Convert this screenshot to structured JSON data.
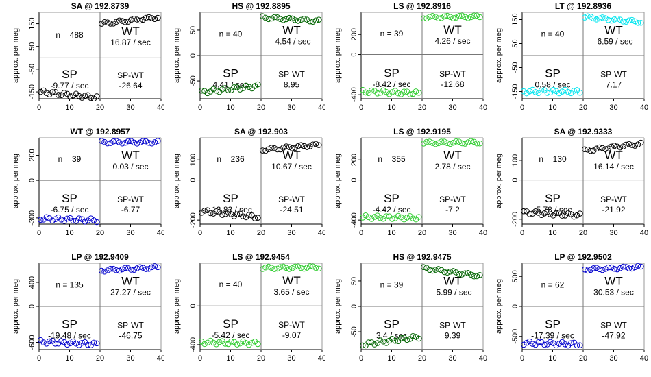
{
  "chart_data": [
    {
      "type": "scatter",
      "title": "SA @ 192.8739",
      "ylabel": "approx. per meg",
      "xlim": [
        0,
        40
      ],
      "ylim": [
        -180,
        200
      ],
      "yticks": [
        150,
        50,
        -50,
        -150
      ],
      "xticks": [
        0,
        10,
        20,
        30,
        40
      ],
      "color": "#000000",
      "n": "n = 488",
      "wt_label": "WT",
      "wt_rate": "16.87 / sec",
      "sp_label": "SP",
      "sp_rate": "-9.77 / sec",
      "diff_label": "SP-WT",
      "diff_value": "-26.64",
      "sp_start": -150,
      "sp_end": -175,
      "wt_start": 150,
      "wt_end": 178
    },
    {
      "type": "scatter",
      "title": "HS @ 192.8895",
      "ylabel": "approx. per meg",
      "xlim": [
        0,
        40
      ],
      "ylim": [
        -85,
        85
      ],
      "yticks": [
        50,
        0,
        -50
      ],
      "xticks": [
        0,
        10,
        20,
        30,
        40
      ],
      "color": "#006400",
      "n": "n = 40",
      "wt_label": "WT",
      "wt_rate": "-4.54 / sec",
      "sp_label": "SP",
      "sp_rate": "4.41 / sec",
      "diff_label": "SP-WT",
      "diff_value": "8.95",
      "sp_start": -72,
      "sp_end": -60,
      "wt_start": 75,
      "wt_end": 68
    },
    {
      "type": "scatter",
      "title": "LS @ 192.8916",
      "ylabel": "approx. per meg",
      "xlim": [
        0,
        40
      ],
      "ylim": [
        -440,
        420
      ],
      "yticks": [
        200,
        0,
        -400
      ],
      "xticks": [
        0,
        10,
        20,
        30,
        40
      ],
      "color": "#32cd32",
      "n": "n = 39",
      "wt_label": "WT",
      "wt_rate": "4.26 / sec",
      "sp_label": "SP",
      "sp_rate": "-8.42 / sec",
      "diff_label": "SP-WT",
      "diff_value": "-12.68",
      "sp_start": -368,
      "sp_end": -385,
      "wt_start": 370,
      "wt_end": 378
    },
    {
      "type": "scatter",
      "title": "LT @ 192.8936",
      "ylabel": "approx. per meg",
      "xlim": [
        0,
        40
      ],
      "ylim": [
        -180,
        180
      ],
      "yticks": [
        150,
        50,
        -50,
        -150
      ],
      "xticks": [
        0,
        10,
        20,
        30,
        40
      ],
      "color": "#00e5ee",
      "n": "n = 40",
      "wt_label": "WT",
      "wt_rate": "-6.59 / sec",
      "sp_label": "SP",
      "sp_rate": "0.58 / sec",
      "diff_label": "SP-WT",
      "diff_value": "7.17",
      "sp_start": -150,
      "sp_end": -150,
      "wt_start": 160,
      "wt_end": 140
    },
    {
      "type": "scatter",
      "title": "WT @ 192.8957",
      "ylabel": "approx. per meg",
      "xlim": [
        0,
        40
      ],
      "ylim": [
        -350,
        340
      ],
      "yticks": [
        200,
        0,
        -300
      ],
      "xticks": [
        0,
        10,
        20,
        30,
        40
      ],
      "color": "#0000cd",
      "n": "n = 39",
      "wt_label": "WT",
      "wt_rate": "0.03 / sec",
      "sp_label": "SP",
      "sp_rate": "-6.75 / sec",
      "diff_label": "SP-WT",
      "diff_value": "-6.77",
      "sp_start": -305,
      "sp_end": -320,
      "wt_start": 305,
      "wt_end": 305
    },
    {
      "type": "scatter",
      "title": "SA @ 192.903",
      "ylabel": "approx. per meg",
      "xlim": [
        0,
        40
      ],
      "ylim": [
        -220,
        210
      ],
      "yticks": [
        100,
        0,
        -200
      ],
      "xticks": [
        0,
        10,
        20,
        30,
        40
      ],
      "color": "#000000",
      "n": "n = 236",
      "wt_label": "WT",
      "wt_rate": "10.67 / sec",
      "sp_label": "SP",
      "sp_rate": "-13.83 / sec",
      "diff_label": "SP-WT",
      "diff_value": "-24.51",
      "sp_start": -155,
      "sp_end": -185,
      "wt_start": 150,
      "wt_end": 175
    },
    {
      "type": "scatter",
      "title": "LS @ 192.9195",
      "ylabel": "approx. per meg",
      "xlim": [
        0,
        40
      ],
      "ylim": [
        -440,
        420
      ],
      "yticks": [
        200,
        0,
        -400
      ],
      "xticks": [
        0,
        10,
        20,
        30,
        40
      ],
      "color": "#32cd32",
      "n": "n = 355",
      "wt_label": "WT",
      "wt_rate": "2.78 / sec",
      "sp_label": "SP",
      "sp_rate": "-4.42 / sec",
      "diff_label": "SP-WT",
      "diff_value": "-7.2",
      "sp_start": -370,
      "sp_end": -378,
      "wt_start": 370,
      "wt_end": 375
    },
    {
      "type": "scatter",
      "title": "SA @ 192.9333",
      "ylabel": "approx. per meg",
      "xlim": [
        0,
        40
      ],
      "ylim": [
        -225,
        215
      ],
      "yticks": [
        100,
        0,
        -200
      ],
      "xticks": [
        0,
        10,
        20,
        30,
        40
      ],
      "color": "#000000",
      "n": "n = 130",
      "wt_label": "WT",
      "wt_rate": "16.14 / sec",
      "sp_label": "SP",
      "sp_rate": "-5.78 / sec",
      "diff_label": "SP-WT",
      "diff_value": "-21.92",
      "sp_start": -165,
      "sp_end": -180,
      "wt_start": 150,
      "wt_end": 185
    },
    {
      "type": "scatter",
      "title": "LP @ 192.9409",
      "ylabel": "approx. per meg",
      "xlim": [
        0,
        40
      ],
      "ylim": [
        -720,
        720
      ],
      "yticks": [
        400,
        0,
        -600
      ],
      "xticks": [
        0,
        10,
        20,
        30,
        40
      ],
      "color": "#0000cd",
      "n": "n = 135",
      "wt_label": "WT",
      "wt_rate": "27.27 / sec",
      "sp_label": "SP",
      "sp_rate": "-19.48 / sec",
      "diff_label": "SP-WT",
      "diff_value": "-46.75",
      "sp_start": -590,
      "sp_end": -630,
      "wt_start": 600,
      "wt_end": 650
    },
    {
      "type": "scatter",
      "title": "LS @ 192.9454",
      "ylabel": "approx. per meg",
      "xlim": [
        0,
        40
      ],
      "ylim": [
        -450,
        440
      ],
      "yticks": [
        0,
        -400
      ],
      "xticks": [
        0,
        10,
        20,
        30,
        40
      ],
      "color": "#32cd32",
      "n": "n = 40",
      "wt_label": "WT",
      "wt_rate": "3.65 / sec",
      "sp_label": "SP",
      "sp_rate": "-5.42 / sec",
      "diff_label": "SP-WT",
      "diff_value": "-9.07",
      "sp_start": -375,
      "sp_end": -385,
      "wt_start": 390,
      "wt_end": 398
    },
    {
      "type": "scatter",
      "title": "HS @ 192.9475",
      "ylabel": "approx. per meg",
      "xlim": [
        0,
        40
      ],
      "ylim": [
        -85,
        85
      ],
      "yticks": [
        50,
        0,
        -50
      ],
      "xticks": [
        0,
        10,
        20,
        30,
        40
      ],
      "color": "#006400",
      "n": "n = 39",
      "wt_label": "WT",
      "wt_rate": "-5.99 / sec",
      "sp_label": "SP",
      "sp_rate": "3.4 / sec",
      "diff_label": "SP-WT",
      "diff_value": "9.39",
      "sp_start": -75,
      "sp_end": -60,
      "wt_start": 75,
      "wt_end": 60
    },
    {
      "type": "scatter",
      "title": "LP @ 192.9502",
      "ylabel": "approx. per meg",
      "xlim": [
        0,
        40
      ],
      "ylim": [
        -720,
        720
      ],
      "yticks": [
        500,
        0,
        -500
      ],
      "xticks": [
        0,
        10,
        20,
        30,
        40
      ],
      "color": "#0000cd",
      "n": "n = 62",
      "wt_label": "WT",
      "wt_rate": "30.53 / sec",
      "sp_label": "SP",
      "sp_rate": "-17.39 / sec",
      "diff_label": "SP-WT",
      "diff_value": "-47.92",
      "sp_start": -610,
      "sp_end": -630,
      "wt_start": 615,
      "wt_end": 655
    }
  ]
}
